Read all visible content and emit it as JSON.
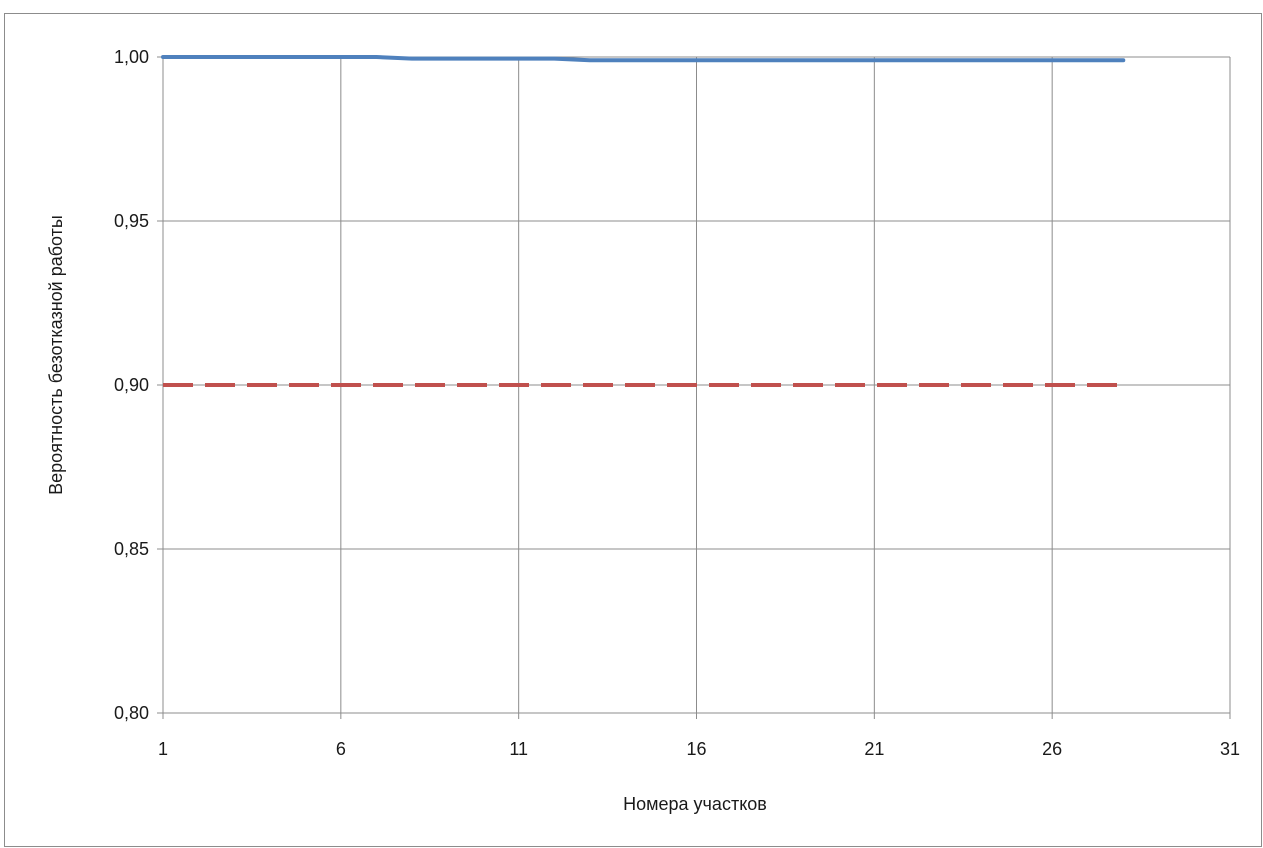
{
  "chart_data": {
    "type": "line",
    "xlabel": "Номера участков",
    "ylabel": "Вероятность безотказной работы",
    "xlim": [
      1,
      31
    ],
    "ylim": [
      0.8,
      1.0
    ],
    "x_ticks": [
      "1",
      "6",
      "11",
      "16",
      "21",
      "26",
      "31"
    ],
    "y_ticks": [
      "0,80",
      "0,85",
      "0,90",
      "0,95",
      "1,00"
    ],
    "grid": true,
    "legend": "none",
    "x": [
      1,
      2,
      3,
      4,
      5,
      6,
      7,
      8,
      9,
      10,
      11,
      12,
      13,
      14,
      15,
      16,
      17,
      18,
      19,
      20,
      21,
      22,
      23,
      24,
      25,
      26,
      27,
      28
    ],
    "series": [
      {
        "color": "#4f81bd",
        "style": "solid",
        "values": [
          1.0,
          1.0,
          1.0,
          1.0,
          1.0,
          1.0,
          1.0,
          0.9995,
          0.9995,
          0.9995,
          0.9995,
          0.9995,
          0.999,
          0.999,
          0.999,
          0.999,
          0.999,
          0.999,
          0.999,
          0.999,
          0.999,
          0.999,
          0.999,
          0.999,
          0.999,
          0.999,
          0.999,
          0.999
        ]
      },
      {
        "color": "#c0504d",
        "style": "dashed",
        "values": [
          0.9,
          0.9,
          0.9,
          0.9,
          0.9,
          0.9,
          0.9,
          0.9,
          0.9,
          0.9,
          0.9,
          0.9,
          0.9,
          0.9,
          0.9,
          0.9,
          0.9,
          0.9,
          0.9,
          0.9,
          0.9,
          0.9,
          0.9,
          0.9,
          0.9,
          0.9,
          0.9,
          0.9
        ]
      }
    ]
  }
}
